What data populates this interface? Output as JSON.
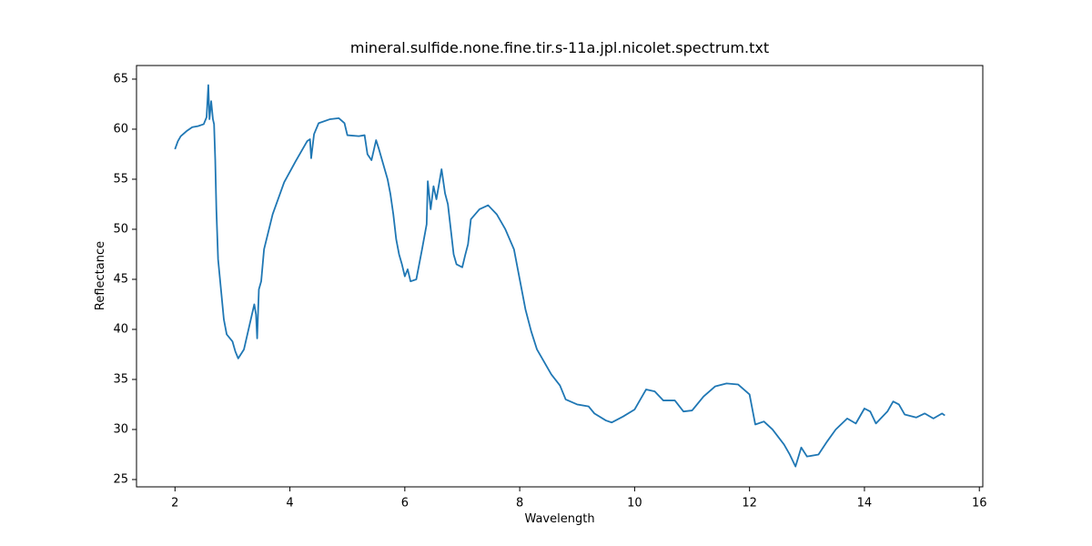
{
  "chart_data": {
    "type": "line",
    "title": "mineral.sulfide.none.fine.tir.s-11a.jpl.nicolet.spectrum.txt",
    "x_label": "Wavelength",
    "y_label": "Reflectance",
    "xlim": [
      1.33,
      16.06
    ],
    "ylim": [
      24.27,
      66.36
    ],
    "xticks": [
      2,
      4,
      6,
      8,
      10,
      12,
      14,
      16
    ],
    "yticks": [
      25,
      30,
      35,
      40,
      45,
      50,
      55,
      60,
      65
    ],
    "grid": false,
    "series": [
      {
        "color": "#1f77b4",
        "x": [
          2.0,
          2.05,
          2.1,
          2.2,
          2.3,
          2.4,
          2.5,
          2.55,
          2.58,
          2.6,
          2.63,
          2.66,
          2.68,
          2.7,
          2.72,
          2.75,
          2.8,
          2.85,
          2.9,
          3.0,
          3.05,
          3.1,
          3.2,
          3.3,
          3.38,
          3.41,
          3.43,
          3.46,
          3.5,
          3.55,
          3.7,
          3.9,
          4.1,
          4.2,
          4.3,
          4.35,
          4.37,
          4.42,
          4.5,
          4.7,
          4.85,
          4.95,
          5.0,
          5.2,
          5.3,
          5.35,
          5.42,
          5.5,
          5.55,
          5.6,
          5.7,
          5.75,
          5.8,
          5.85,
          5.9,
          5.95,
          6.0,
          6.05,
          6.1,
          6.2,
          6.3,
          6.38,
          6.4,
          6.45,
          6.5,
          6.55,
          6.64,
          6.7,
          6.75,
          6.8,
          6.85,
          6.9,
          7.0,
          7.05,
          7.1,
          7.15,
          7.3,
          7.45,
          7.6,
          7.75,
          7.9,
          8.0,
          8.1,
          8.2,
          8.3,
          8.45,
          8.55,
          8.7,
          8.8,
          9.0,
          9.2,
          9.3,
          9.5,
          9.6,
          9.8,
          10.0,
          10.2,
          10.35,
          10.5,
          10.7,
          10.85,
          11.0,
          11.2,
          11.4,
          11.6,
          11.8,
          12.0,
          12.1,
          12.25,
          12.4,
          12.6,
          12.7,
          12.8,
          12.9,
          13.0,
          13.2,
          13.35,
          13.5,
          13.7,
          13.85,
          14.0,
          14.1,
          14.2,
          14.4,
          14.5,
          14.6,
          14.7,
          14.9,
          15.05,
          15.2,
          15.35,
          15.4
        ],
        "values": [
          58.0,
          58.8,
          59.3,
          59.8,
          60.2,
          60.3,
          60.5,
          61.2,
          64.4,
          61.0,
          62.8,
          61.0,
          60.5,
          57.0,
          52.0,
          47.0,
          44.0,
          41.0,
          39.5,
          38.8,
          37.8,
          37.1,
          38.0,
          40.5,
          42.5,
          41.5,
          39.1,
          44.0,
          44.8,
          48.0,
          51.5,
          54.7,
          56.8,
          57.8,
          58.8,
          59.0,
          57.1,
          59.5,
          60.6,
          61.0,
          61.1,
          60.6,
          59.4,
          59.3,
          59.4,
          57.5,
          56.9,
          58.9,
          58.0,
          57.0,
          55.0,
          53.5,
          51.5,
          49.0,
          47.5,
          46.5,
          45.3,
          46.0,
          44.8,
          45.0,
          48.0,
          50.5,
          54.8,
          52.0,
          54.3,
          53.0,
          56.0,
          53.6,
          52.5,
          50.0,
          47.5,
          46.5,
          46.2,
          47.4,
          48.5,
          51.0,
          52.0,
          52.4,
          51.5,
          50.0,
          48.0,
          45.0,
          42.0,
          39.8,
          38.0,
          36.5,
          35.5,
          34.4,
          33.0,
          32.5,
          32.3,
          31.6,
          30.9,
          30.7,
          31.3,
          32.0,
          34.0,
          33.8,
          32.9,
          32.9,
          31.8,
          31.9,
          33.3,
          34.3,
          34.6,
          34.5,
          33.5,
          30.5,
          30.8,
          30.0,
          28.5,
          27.5,
          26.3,
          28.2,
          27.3,
          27.5,
          28.8,
          30.0,
          31.1,
          30.6,
          32.1,
          31.8,
          30.6,
          31.8,
          32.8,
          32.5,
          31.5,
          31.2,
          31.6,
          31.1,
          31.6,
          31.4
        ]
      }
    ]
  }
}
